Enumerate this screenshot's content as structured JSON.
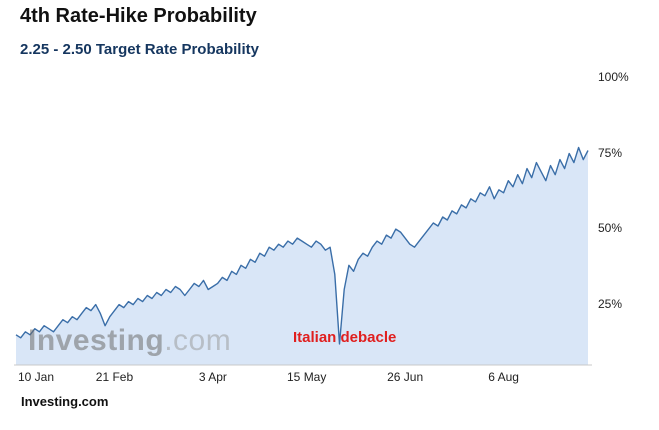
{
  "page": {
    "title": "4th Rate-Hike Probability",
    "subtitle": "2.25 - 2.50 Target Rate Probability",
    "source": "Investing.com",
    "watermark_bold": "Investing",
    "watermark_light": ".com"
  },
  "colors": {
    "line": "#3a6ea8",
    "fill": "#d9e6f7",
    "axis": "#c8c8c8",
    "annotation": "#e01f1f",
    "subtitle": "#15365f"
  },
  "chart_data": {
    "type": "area",
    "title": "2.25 - 2.50 Target Rate Probability",
    "xlabel": "",
    "ylabel": "",
    "ylim": [
      5,
      105
    ],
    "grid": false,
    "legend": false,
    "yticks": [
      25,
      50,
      75,
      100
    ],
    "ytick_labels": [
      "25%",
      "50%",
      "75%",
      "100%"
    ],
    "x_ticks": [
      {
        "label": "10 Jan",
        "index": 0
      },
      {
        "label": "21 Feb",
        "index": 21
      },
      {
        "label": "3 Apr",
        "index": 42
      },
      {
        "label": "15 May",
        "index": 62
      },
      {
        "label": "26 Jun",
        "index": 83
      },
      {
        "label": "6 Aug",
        "index": 104
      }
    ],
    "annotation": {
      "text": "Italian debacle",
      "index": 69,
      "value": 12
    },
    "values": [
      15,
      14,
      16,
      15,
      17,
      16,
      18,
      17,
      16,
      18,
      20,
      19,
      21,
      20,
      22,
      24,
      23,
      25,
      22,
      18,
      21,
      23,
      25,
      24,
      26,
      25,
      27,
      26,
      28,
      27,
      29,
      28,
      30,
      29,
      31,
      30,
      28,
      30,
      32,
      31,
      33,
      30,
      31,
      32,
      34,
      33,
      36,
      35,
      38,
      37,
      40,
      39,
      42,
      41,
      44,
      43,
      45,
      44,
      46,
      45,
      47,
      46,
      45,
      44,
      46,
      45,
      43,
      44,
      35,
      12,
      30,
      38,
      36,
      40,
      42,
      41,
      44,
      46,
      45,
      48,
      47,
      50,
      49,
      47,
      45,
      44,
      46,
      48,
      50,
      52,
      51,
      54,
      53,
      56,
      55,
      58,
      57,
      60,
      59,
      62,
      61,
      64,
      60,
      63,
      62,
      66,
      64,
      68,
      65,
      70,
      67,
      72,
      69,
      66,
      71,
      68,
      73,
      70,
      75,
      72,
      77,
      73,
      76
    ]
  }
}
